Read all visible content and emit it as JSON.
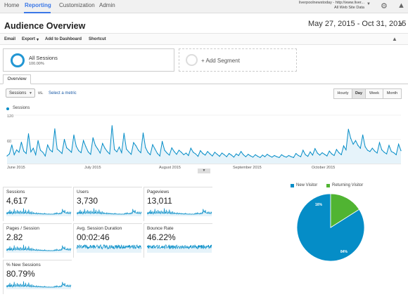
{
  "topnav": {
    "home": "Home",
    "reporting": "Reporting",
    "customization": "Customization",
    "admin": "Admin"
  },
  "account": {
    "line1": "liverpoolnewstoday - http://www.liver...",
    "line2": "All Web Site Data"
  },
  "page": {
    "title": "Audience Overview",
    "date_range": "May 27, 2015 - Oct 31, 2015"
  },
  "toolbar": {
    "email": "Email",
    "export": "Export",
    "add_dashboard": "Add to Dashboard",
    "shortcut": "Shortcut"
  },
  "segments": {
    "active_name": "All Sessions",
    "active_pct": "100.00%",
    "add_label": "+ Add Segment"
  },
  "tabs": {
    "overview": "Overview"
  },
  "controls": {
    "metric": "Sessions",
    "vs": "vs.",
    "select_metric": "Select a metric",
    "hourly": "Hourly",
    "day": "Day",
    "week": "Week",
    "month": "Month"
  },
  "chart_labels": {
    "legend": "Sessions",
    "y_top": "120",
    "y_mid": "60"
  },
  "chart_data": {
    "type": "line",
    "series": [
      {
        "name": "Sessions"
      }
    ],
    "ylim": [
      0,
      120
    ],
    "x_ticks": [
      "June 2015",
      "July 2015",
      "August 2015",
      "September 2015",
      "October 2015"
    ],
    "values": [
      19,
      24,
      46,
      22,
      34,
      28,
      53,
      31,
      25,
      74,
      29,
      38,
      22,
      57,
      33,
      28,
      19,
      46,
      34,
      29,
      86,
      36,
      31,
      25,
      60,
      39,
      34,
      28,
      71,
      43,
      32,
      27,
      57,
      42,
      29,
      23,
      64,
      45,
      36,
      26,
      50,
      38,
      30,
      24,
      94,
      35,
      29,
      41,
      27,
      75,
      36,
      29,
      23,
      52,
      44,
      33,
      27,
      76,
      40,
      28,
      22,
      47,
      36,
      25,
      19,
      55,
      33,
      26,
      21,
      39,
      30,
      23,
      33,
      28,
      22,
      26,
      20,
      38,
      28,
      24,
      18,
      32,
      25,
      21,
      30,
      24,
      19,
      28,
      23,
      18,
      26,
      22,
      17,
      25,
      21,
      16,
      24,
      20,
      30,
      22,
      17,
      23,
      19,
      16,
      22,
      18,
      15,
      21,
      17,
      23,
      19,
      16,
      20,
      17,
      15,
      22,
      18,
      16,
      20,
      17,
      15,
      25,
      20,
      17,
      33,
      22,
      18,
      29,
      21,
      37,
      26,
      21,
      27,
      23,
      19,
      31,
      24,
      20,
      35,
      27,
      22,
      44,
      34,
      85,
      62,
      48,
      57,
      45,
      38,
      71,
      42,
      33,
      30,
      38,
      31,
      26,
      52,
      34,
      28,
      24,
      45,
      30,
      27,
      22,
      48,
      32
    ]
  },
  "metrics": [
    {
      "label": "Sessions",
      "value": "4,617"
    },
    {
      "label": "Users",
      "value": "3,730"
    },
    {
      "label": "Pageviews",
      "value": "13,011"
    },
    {
      "label": "Pages / Session",
      "value": "2.82"
    },
    {
      "label": "Avg. Session Duration",
      "value": "00:02:46"
    },
    {
      "label": "Bounce Rate",
      "value": "46.22%"
    },
    {
      "label": "% New Sessions",
      "value": "80.79%"
    }
  ],
  "pie": {
    "new_label": "New Visitor",
    "returning_label": "Returning Visitor",
    "new_pct_label": "84%",
    "returning_pct_label": "16%",
    "new_pct": 84,
    "returning_pct": 16,
    "new_color": "#058dc7",
    "returning_color": "#50b432"
  },
  "colors": {
    "accent": "#058dc7",
    "line": "#058dc7",
    "area": "#e6f3fa"
  }
}
